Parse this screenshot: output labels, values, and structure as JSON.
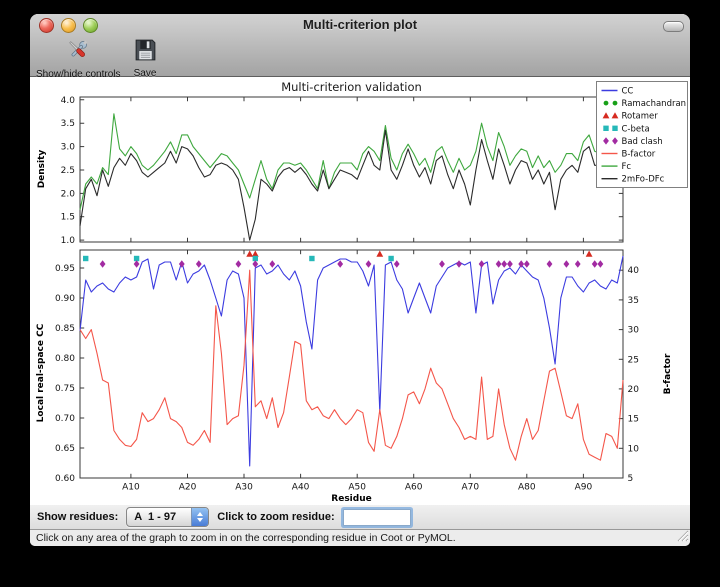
{
  "window": {
    "title": "Multi-criterion plot"
  },
  "toolbar": {
    "buttons": [
      {
        "label": "Show/hide controls",
        "icon": "tools-icon"
      },
      {
        "label": "Save",
        "icon": "save-icon"
      }
    ]
  },
  "controls": {
    "show_residues_label": "Show residues:",
    "chain_range_value": "A  1 - 97",
    "zoom_label": "Click to zoom residue:",
    "zoom_value": ""
  },
  "status_bar": {
    "text": "Click on any area of the graph to zoom in on the corresponding residue in Coot or PyMOL."
  },
  "chart_data": {
    "type": "line",
    "title": "Multi-criterion validation",
    "xlabel": "Residue",
    "x_range": [
      1,
      97
    ],
    "x_ticks": [
      10,
      20,
      30,
      40,
      50,
      60,
      70,
      80,
      90
    ],
    "x_tick_labels": [
      "A10",
      "A20",
      "A30",
      "A40",
      "A50",
      "A60",
      "A70",
      "A80",
      "A90"
    ],
    "top": {
      "ylabel": "Density",
      "ylim": [
        0.96,
        4.06
      ],
      "yticks": [
        1.0,
        1.5,
        2.0,
        2.5,
        3.0,
        3.5,
        4.0
      ],
      "series": [
        {
          "name": "Fc",
          "color": "#3fa83f",
          "values": [
            1.65,
            2.2,
            2.35,
            2.2,
            2.55,
            2.4,
            3.7,
            2.95,
            2.8,
            3.0,
            2.85,
            2.6,
            2.5,
            2.6,
            2.75,
            2.9,
            3.1,
            2.85,
            3.25,
            3.25,
            3.0,
            2.85,
            2.7,
            2.55,
            2.7,
            2.85,
            2.8,
            2.65,
            2.5,
            2.2,
            1.9,
            2.3,
            2.7,
            2.3,
            2.1,
            2.5,
            2.65,
            2.65,
            2.6,
            2.65,
            2.5,
            2.3,
            2.1,
            2.7,
            2.1,
            2.45,
            2.65,
            2.65,
            2.65,
            2.5,
            2.85,
            3.0,
            2.9,
            2.7,
            3.45,
            2.75,
            2.5,
            2.85,
            3.05,
            2.85,
            2.6,
            2.75,
            2.45,
            2.9,
            3.0,
            2.7,
            2.45,
            2.75,
            2.5,
            2.6,
            2.9,
            3.5,
            3.0,
            2.7,
            3.3,
            3.0,
            2.6,
            2.8,
            2.95,
            2.9,
            2.55,
            2.8,
            2.55,
            2.7,
            2.45,
            2.6,
            2.85,
            2.85,
            2.7,
            3.1,
            3.25,
            2.9,
            2.85,
            2.9,
            2.85,
            3.15,
            3.5
          ]
        },
        {
          "name": "2mFo-DFc",
          "color": "#2b2b2b",
          "values": [
            1.3,
            2.1,
            2.3,
            1.95,
            2.5,
            2.15,
            2.55,
            2.75,
            2.6,
            2.85,
            2.7,
            2.45,
            2.35,
            2.45,
            2.55,
            2.65,
            2.9,
            2.65,
            3.0,
            2.95,
            2.8,
            2.55,
            2.35,
            2.4,
            2.6,
            2.65,
            2.6,
            2.5,
            2.3,
            1.7,
            1.0,
            1.45,
            2.3,
            2.2,
            2.05,
            2.35,
            2.5,
            2.55,
            2.45,
            2.55,
            2.4,
            2.2,
            2.05,
            2.5,
            2.1,
            2.3,
            2.5,
            2.45,
            2.4,
            2.3,
            2.6,
            2.9,
            2.6,
            2.5,
            3.35,
            2.5,
            2.3,
            2.6,
            2.95,
            2.6,
            2.35,
            2.55,
            2.2,
            2.7,
            2.8,
            2.4,
            2.1,
            2.5,
            2.2,
            1.75,
            2.5,
            3.15,
            2.7,
            2.3,
            2.95,
            2.6,
            2.2,
            2.5,
            2.7,
            2.65,
            2.3,
            2.5,
            2.2,
            2.45,
            1.65,
            2.3,
            2.5,
            2.6,
            2.45,
            2.9,
            3.0,
            2.6,
            2.6,
            2.65,
            2.6,
            2.9,
            3.3
          ]
        }
      ]
    },
    "bottom": {
      "ylabel_left": "Local real-space CC",
      "ylim_left": [
        0.6,
        0.98
      ],
      "yticks_left": [
        0.6,
        0.65,
        0.7,
        0.75,
        0.8,
        0.85,
        0.9,
        0.95
      ],
      "ylabel_right": "B-factor",
      "ylim_right": [
        5,
        43.4
      ],
      "yticks_right": [
        5,
        10,
        15,
        20,
        25,
        30,
        35,
        40
      ],
      "series": [
        {
          "name": "CC",
          "axis": "left",
          "color": "#3c3ce0",
          "values": [
            0.845,
            0.93,
            0.91,
            0.92,
            0.925,
            0.915,
            0.91,
            0.925,
            0.935,
            0.93,
            0.935,
            0.96,
            0.965,
            0.915,
            0.955,
            0.96,
            0.96,
            0.93,
            0.96,
            0.925,
            0.94,
            0.945,
            0.955,
            0.93,
            0.9,
            0.87,
            0.93,
            0.945,
            0.94,
            0.9,
            0.62,
            0.95,
            0.955,
            0.94,
            0.945,
            0.955,
            0.94,
            0.93,
            0.945,
            0.92,
            0.86,
            0.815,
            0.93,
            0.95,
            0.955,
            0.96,
            0.965,
            0.965,
            0.96,
            0.96,
            0.945,
            0.92,
            0.955,
            0.71,
            0.955,
            0.96,
            0.93,
            0.915,
            0.875,
            0.9,
            0.925,
            0.9,
            0.875,
            0.92,
            0.935,
            0.95,
            0.955,
            0.96,
            0.955,
            0.96,
            0.875,
            0.955,
            0.96,
            0.89,
            0.93,
            0.945,
            0.95,
            0.94,
            0.955,
            0.945,
            0.935,
            0.93,
            0.9,
            0.85,
            0.79,
            0.9,
            0.935,
            0.935,
            0.92,
            0.91,
            0.925,
            0.93,
            0.92,
            0.915,
            0.93,
            0.925,
            0.97
          ]
        },
        {
          "name": "B-factor",
          "axis": "right",
          "color": "#f4564a",
          "values": [
            30,
            28.5,
            30,
            26,
            21.5,
            21,
            13,
            11.5,
            10.5,
            10.3,
            11.5,
            16,
            14.5,
            15,
            16.5,
            18.5,
            15,
            14.5,
            13.5,
            11,
            10.5,
            11.5,
            13,
            11,
            34,
            26,
            14,
            15,
            15.5,
            24,
            40,
            17,
            18,
            15,
            18.5,
            13.5,
            16,
            22,
            28,
            27.5,
            18,
            16.5,
            17,
            15.5,
            15,
            16.5,
            15,
            14,
            15,
            16.5,
            16,
            11,
            9.5,
            16.5,
            10.5,
            10,
            12,
            15,
            19,
            19.5,
            17.5,
            20,
            23.5,
            21,
            20,
            17.5,
            15,
            13.5,
            11.5,
            12,
            11.5,
            22,
            11.5,
            12,
            20,
            14,
            10,
            8,
            12,
            15,
            11.5,
            13,
            18,
            23,
            23.5,
            19.5,
            15.5,
            15,
            17.5,
            11.5,
            9,
            8.5,
            8,
            12.5,
            12,
            10,
            21.5
          ]
        }
      ],
      "outlier_markers": {
        "ramachandran": {
          "shape": "circle",
          "color": "#18a018",
          "residues": []
        },
        "rotamer": {
          "shape": "triangle",
          "color": "#d62b20",
          "residues": [
            31,
            32,
            54,
            91
          ]
        },
        "c_beta": {
          "shape": "square",
          "color": "#25b8b8",
          "residues": [
            2,
            11,
            32,
            42,
            56
          ]
        },
        "bad_clash": {
          "shape": "diamond",
          "color": "#a22ba2",
          "residues": [
            5,
            11,
            19,
            22,
            29,
            32,
            35,
            47,
            52,
            57,
            65,
            68,
            72,
            75,
            76,
            77,
            79,
            80,
            84,
            87,
            89,
            92,
            93
          ]
        }
      }
    },
    "legend": [
      {
        "label": "CC",
        "type": "line",
        "color": "#3c3ce0"
      },
      {
        "label": "Ramachandran",
        "type": "dots",
        "color": "#18a018"
      },
      {
        "label": "Rotamer",
        "type": "triangles",
        "color": "#d62b20"
      },
      {
        "label": "C-beta",
        "type": "squares",
        "color": "#25b8b8"
      },
      {
        "label": "Bad clash",
        "type": "diamonds",
        "color": "#a22ba2"
      },
      {
        "label": "B-factor",
        "type": "line",
        "color": "#f4564a"
      },
      {
        "label": "Fc",
        "type": "line",
        "color": "#3fa83f"
      },
      {
        "label": "2mFo-DFc",
        "type": "line",
        "color": "#2b2b2b"
      }
    ]
  }
}
